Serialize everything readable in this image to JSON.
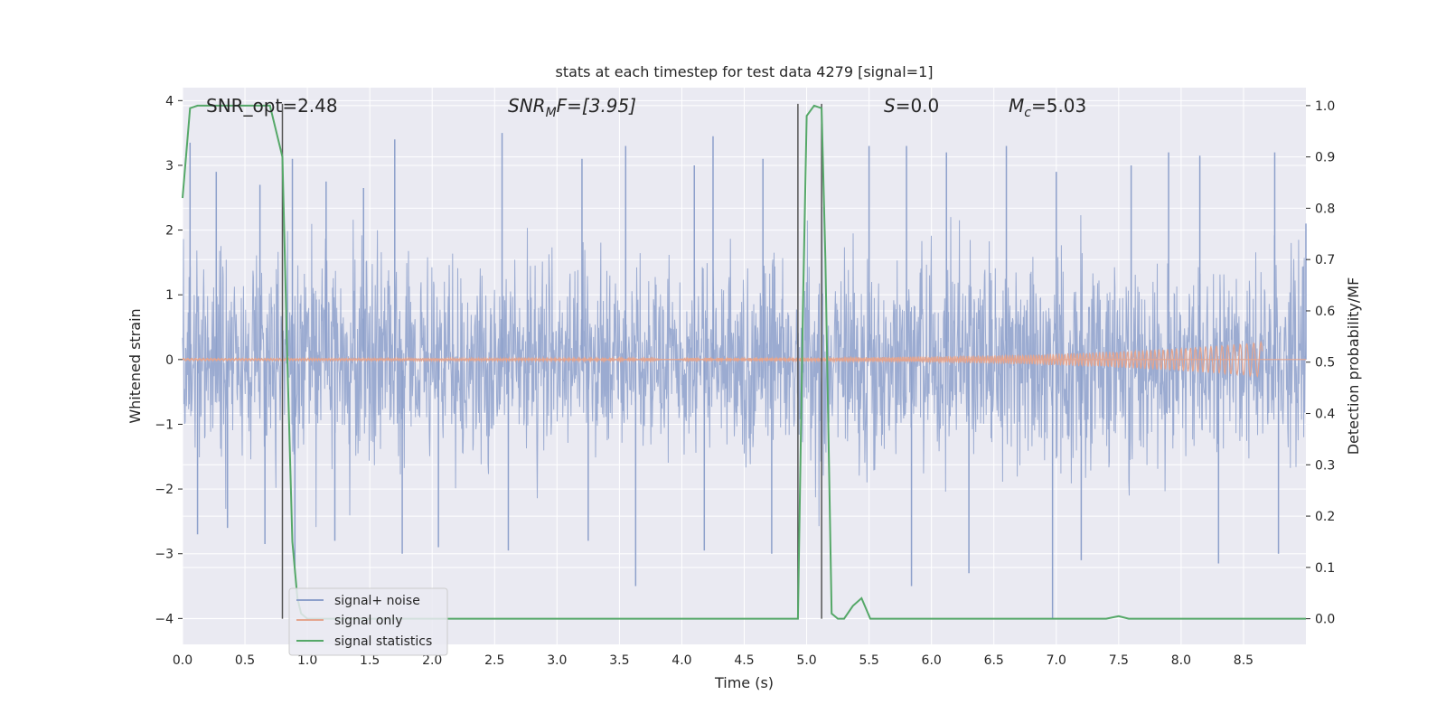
{
  "chart_data": {
    "type": "line",
    "title": "stats at each timestep for test data 4279 [signal=1]",
    "xlabel": "Time (s)",
    "ylabel": "Whitened strain",
    "ylabel_right": "Detection probability/MF",
    "xlim": [
      0.0,
      9.0
    ],
    "ylim": [
      -4.4,
      4.2
    ],
    "ylim_right": [
      -0.05,
      1.035
    ],
    "x_ticks": [
      "0.0",
      "0.5",
      "1.0",
      "1.5",
      "2.0",
      "2.5",
      "3.0",
      "3.5",
      "4.0",
      "4.5",
      "5.0",
      "5.5",
      "6.0",
      "6.5",
      "7.0",
      "7.5",
      "8.0",
      "8.5"
    ],
    "y_ticks": [
      "4",
      "3",
      "2",
      "1",
      "0",
      "−1",
      "−2",
      "−3",
      "−4"
    ],
    "y_ticks_right": [
      "1.0",
      "0.9",
      "0.8",
      "0.7",
      "0.6",
      "0.5",
      "0.4",
      "0.3",
      "0.2",
      "0.1",
      "0.0"
    ],
    "grid": true,
    "legend_position": "bottom-left",
    "annotations": {
      "snr_opt": "SNR_opt=2.48",
      "snr_mf_main": "SNR",
      "snr_mf_sub": "M",
      "snr_mf_tail": "F=[3.95]",
      "s_main": "S",
      "s_tail": "=0.0",
      "mc_main": "M",
      "mc_sub": "c",
      "mc_tail": "=5.03"
    },
    "vertical_lines_x": [
      0.8,
      4.93,
      5.12
    ],
    "series": [
      {
        "name": "signal+ noise",
        "color": "#8da0cb",
        "axis": "left",
        "description_range": [
          -3.5,
          3.5
        ],
        "spike_samples": [
          [
            0.06,
            3.35
          ],
          [
            0.12,
            -2.7
          ],
          [
            0.27,
            2.9
          ],
          [
            0.36,
            -2.6
          ],
          [
            0.62,
            2.7
          ],
          [
            0.66,
            -2.85
          ],
          [
            0.88,
            3.1
          ],
          [
            0.9,
            -3.3
          ],
          [
            1.15,
            2.75
          ],
          [
            1.22,
            -2.8
          ],
          [
            1.45,
            2.65
          ],
          [
            1.7,
            3.4
          ],
          [
            1.76,
            -3.0
          ],
          [
            2.05,
            -2.9
          ],
          [
            2.56,
            3.5
          ],
          [
            2.61,
            -2.95
          ],
          [
            3.2,
            3.1
          ],
          [
            3.25,
            -2.8
          ],
          [
            3.55,
            3.3
          ],
          [
            3.63,
            -3.5
          ],
          [
            4.1,
            3.0
          ],
          [
            4.18,
            -2.95
          ],
          [
            4.25,
            3.45
          ],
          [
            4.65,
            3.1
          ],
          [
            4.72,
            -3.0
          ],
          [
            5.5,
            3.3
          ],
          [
            5.8,
            3.3
          ],
          [
            5.84,
            -3.5
          ],
          [
            6.12,
            3.2
          ],
          [
            6.3,
            -3.3
          ],
          [
            6.6,
            3.3
          ],
          [
            7.0,
            2.9
          ],
          [
            6.97,
            -4.0
          ],
          [
            7.2,
            -3.1
          ],
          [
            7.6,
            3.0
          ],
          [
            7.9,
            3.2
          ],
          [
            8.15,
            3.15
          ],
          [
            8.3,
            -3.15
          ],
          [
            8.75,
            3.2
          ],
          [
            8.78,
            -3.0
          ],
          [
            9.0,
            2.1
          ]
        ]
      },
      {
        "name": "signal only",
        "color": "#e4a58f",
        "axis": "left",
        "chirp_x_range": [
          0.0,
          8.65
        ],
        "chirp_amplitude_peak": 0.25
      },
      {
        "name": "signal statistics",
        "color": "#55a868",
        "axis": "right",
        "x": [
          0.0,
          0.06,
          0.12,
          0.3,
          0.5,
          0.6,
          0.7,
          0.8,
          0.84,
          0.88,
          0.92,
          0.95,
          1.0,
          1.2,
          1.5,
          2.0,
          3.0,
          4.0,
          4.5,
          4.93,
          4.97,
          5.0,
          5.06,
          5.12,
          5.15,
          5.2,
          5.25,
          5.3,
          5.37,
          5.44,
          5.51,
          5.6,
          6.0,
          7.0,
          7.4,
          7.5,
          7.58,
          8.0,
          8.5,
          9.0
        ],
        "y": [
          0.82,
          0.995,
          1.0,
          1.0,
          1.0,
          1.0,
          1.0,
          0.9,
          0.5,
          0.15,
          0.04,
          0.01,
          0.0,
          0.0,
          0.0,
          0.0,
          0.0,
          0.0,
          0.0,
          0.0,
          0.6,
          0.98,
          1.0,
          0.995,
          0.7,
          0.01,
          0.0,
          0.0,
          0.025,
          0.04,
          0.0,
          0.0,
          0.0,
          0.0,
          0.0,
          0.005,
          0.0,
          0.0,
          0.0,
          0.0
        ]
      }
    ]
  }
}
